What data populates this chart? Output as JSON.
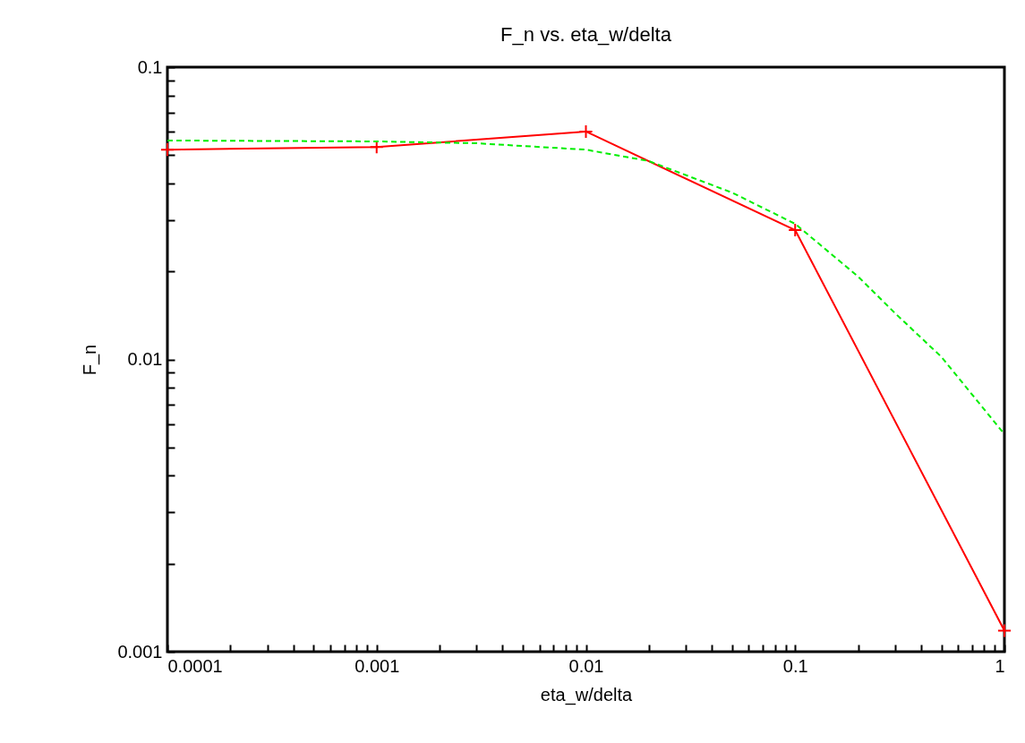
{
  "chart_data": {
    "type": "line",
    "title": "F_n vs. eta_w/delta",
    "xlabel": "eta_w/delta",
    "ylabel": "F_n",
    "log": "xy",
    "grid": false,
    "xlim": [
      0.0001,
      1
    ],
    "ylim": [
      0.001,
      0.1
    ],
    "xticks": [
      0.0001,
      {
        "value": 0.0002,
        "label": null
      },
      {
        "value": 0.0003,
        "label": null
      },
      {
        "value": 0.0004,
        "label": null
      },
      {
        "value": 0.0005,
        "label": null
      },
      {
        "value": 0.0006,
        "label": null
      },
      {
        "value": 0.0007,
        "label": null
      },
      {
        "value": 0.0008,
        "label": null
      },
      {
        "value": 0.0009,
        "label": null
      },
      0.001,
      {
        "value": 0.002,
        "label": null
      },
      {
        "value": 0.003,
        "label": null
      },
      {
        "value": 0.004,
        "label": null
      },
      {
        "value": 0.005,
        "label": null
      },
      {
        "value": 0.006,
        "label": null
      },
      {
        "value": 0.007,
        "label": null
      },
      {
        "value": 0.008,
        "label": null
      },
      {
        "value": 0.009,
        "label": null
      },
      0.01,
      {
        "value": 0.02,
        "label": null
      },
      {
        "value": 0.03,
        "label": null
      },
      {
        "value": 0.04,
        "label": null
      },
      {
        "value": 0.05,
        "label": null
      },
      {
        "value": 0.06,
        "label": null
      },
      {
        "value": 0.07,
        "label": null
      },
      {
        "value": 0.08,
        "label": null
      },
      {
        "value": 0.09,
        "label": null
      },
      0.1,
      {
        "value": 0.2,
        "label": null
      },
      {
        "value": 0.3,
        "label": null
      },
      {
        "value": 0.4,
        "label": null
      },
      {
        "value": 0.5,
        "label": null
      },
      {
        "value": 0.6,
        "label": null
      },
      {
        "value": 0.7,
        "label": null
      },
      {
        "value": 0.8,
        "label": null
      },
      {
        "value": 0.9,
        "label": null
      },
      1
    ],
    "yticks": [
      0.001,
      {
        "value": 0.002,
        "label": null
      },
      {
        "value": 0.003,
        "label": null
      },
      {
        "value": 0.004,
        "label": null
      },
      {
        "value": 0.005,
        "label": null
      },
      {
        "value": 0.006,
        "label": null
      },
      {
        "value": 0.007,
        "label": null
      },
      {
        "value": 0.008,
        "label": null
      },
      {
        "value": 0.009,
        "label": null
      },
      0.01,
      {
        "value": 0.02,
        "label": null
      },
      {
        "value": 0.03,
        "label": null
      },
      {
        "value": 0.04,
        "label": null
      },
      {
        "value": 0.05,
        "label": null
      },
      {
        "value": 0.06,
        "label": null
      },
      {
        "value": 0.07,
        "label": null
      },
      {
        "value": 0.08,
        "label": null
      },
      {
        "value": 0.09,
        "label": null
      },
      0.1
    ],
    "series": [
      {
        "color": "#ff0000",
        "marker": "cross",
        "line_style": "solid",
        "x": [
          0.0001,
          0.001,
          0.01,
          0.1,
          1
        ],
        "values": [
          0.0522,
          0.0533,
          0.0602,
          0.0277,
          0.00118
        ]
      },
      {
        "type": "line",
        "color": "#00ee00",
        "line_style": "dashed",
        "x": [
          0.0001,
          0.001,
          0.003,
          0.01,
          0.02,
          0.05,
          0.1,
          0.2,
          0.3,
          0.5,
          1
        ],
        "values": [
          0.0561,
          0.0557,
          0.0549,
          0.0522,
          0.0477,
          0.0372,
          0.0291,
          0.0192,
          0.0144,
          0.0102,
          0.00555
        ]
      }
    ]
  }
}
